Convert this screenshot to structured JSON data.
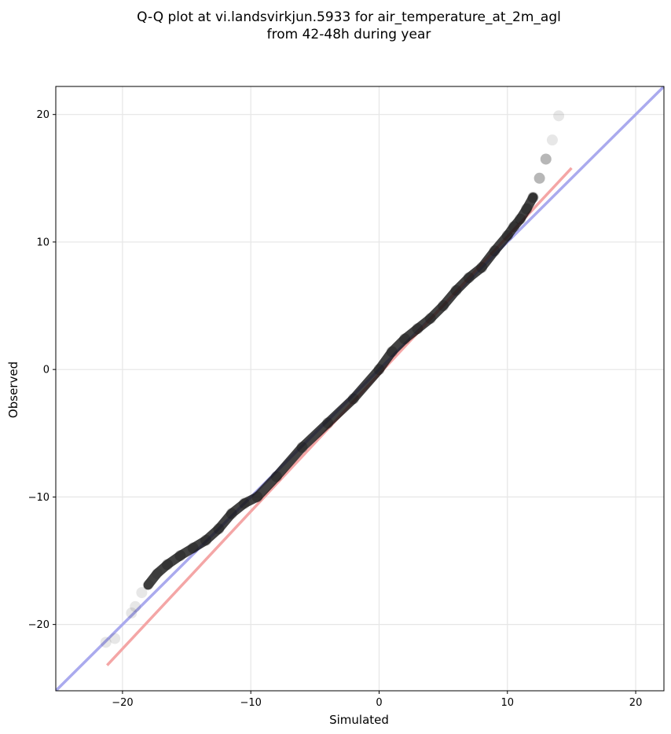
{
  "chart_data": {
    "type": "scatter",
    "title_lines": [
      "Q-Q plot at vi.landsvirkjun.5933 for air_temperature_at_2m_agl",
      "from 42-48h during year"
    ],
    "xlabel": "Simulated",
    "ylabel": "Observed",
    "xlim": [
      -25.2,
      22.2
    ],
    "ylim": [
      -25.2,
      22.2
    ],
    "xticks": [
      -20,
      -10,
      0,
      10,
      20
    ],
    "yticks": [
      -20,
      -10,
      0,
      10,
      20
    ],
    "xtick_labels": [
      "−20",
      "−10",
      "0",
      "10",
      "20"
    ],
    "ytick_labels": [
      "−20",
      "−10",
      "0",
      "10",
      "20"
    ],
    "grid": true,
    "reference_lines": [
      {
        "kind": "one-to-one",
        "color": "#aaaaee",
        "points": [
          [
            -25.2,
            -25.2
          ],
          [
            22.2,
            22.2
          ]
        ]
      },
      {
        "kind": "linear-fit",
        "color": "#f4a6a6",
        "points": [
          [
            -21.2,
            -23.2
          ],
          [
            15.0,
            15.8
          ]
        ]
      }
    ],
    "quantile_curve": {
      "color": "#111111",
      "x": [
        -21.3,
        -20.6,
        -19.3,
        -19.0,
        -18.5,
        -18.0,
        -17.3,
        -16.5,
        -15.5,
        -14.5,
        -13.5,
        -12.5,
        -11.5,
        -10.5,
        -9.5,
        -8.0,
        -6.0,
        -4.0,
        -2.0,
        0.0,
        1.0,
        2.0,
        3.0,
        4.0,
        5.0,
        6.0,
        7.0,
        8.0,
        9.0,
        10.0,
        10.5,
        11.0,
        11.5,
        12.0,
        12.5,
        13.0,
        13.5,
        14.0
      ],
      "y": [
        -21.4,
        -21.1,
        -19.1,
        -18.6,
        -17.5,
        -16.9,
        -16.0,
        -15.3,
        -14.6,
        -14.0,
        -13.4,
        -12.5,
        -11.3,
        -10.5,
        -10.0,
        -8.4,
        -6.1,
        -4.2,
        -2.3,
        0.0,
        1.4,
        2.4,
        3.2,
        4.0,
        5.0,
        6.2,
        7.2,
        8.0,
        9.3,
        10.5,
        11.2,
        11.8,
        12.6,
        13.5,
        15.0,
        16.5,
        18.0,
        19.9
      ]
    }
  }
}
